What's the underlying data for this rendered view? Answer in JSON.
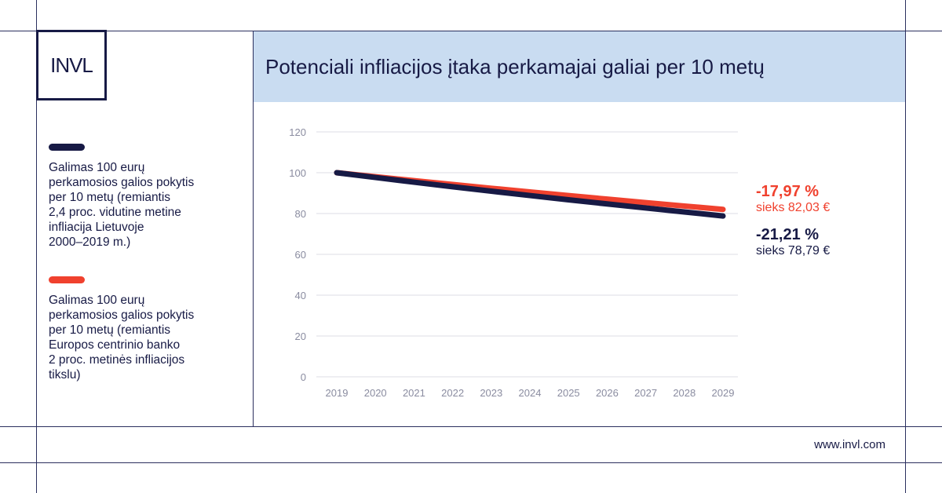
{
  "brand": {
    "logo_text": "INVL",
    "website": "www.invl.com"
  },
  "colors": {
    "navy": "#171a45",
    "red": "#f0412e",
    "title_bg": "#c9dcf1",
    "grid": "#dcdde4",
    "axis_text": "#8a8ca0"
  },
  "chart_data": {
    "type": "line",
    "title": "Potenciali infliacijos įtaka perkamajai galiai per 10 metų",
    "xlabel": "",
    "ylabel": "",
    "x": [
      "2019",
      "2020",
      "2021",
      "2022",
      "2023",
      "2024",
      "2025",
      "2026",
      "2027",
      "2028",
      "2029"
    ],
    "ylim": [
      0,
      120
    ],
    "yticks": [
      "0",
      "20",
      "40",
      "60",
      "80",
      "100",
      "120"
    ],
    "grid": true,
    "legend_position": "left",
    "series": [
      {
        "name": "Galimas 100 eurų perkamosios galios pokytis per 10 metų (remiantis 2,4 proc. vidutine metine infliacija Lietuvoje 2000–2019 m.)",
        "color": "#171a45",
        "values": [
          100.0,
          97.66,
          95.37,
          93.13,
          90.95,
          88.82,
          86.74,
          84.7,
          82.72,
          80.78,
          78.79
        ],
        "end_label_pct": "-21,21 %",
        "end_label_value": "sieks 78,79 €"
      },
      {
        "name": "Galimas 100 eurų perkamosios galios pokytis per 10 metų (remiantis Europos centrinio banko 2 proc. metinės infliacijos tikslu)",
        "color": "#f0412e",
        "values": [
          100.0,
          98.04,
          96.12,
          94.23,
          92.38,
          90.57,
          88.8,
          87.06,
          85.35,
          83.68,
          82.03
        ],
        "end_label_pct": "-17,97 %",
        "end_label_value": "sieks 82,03 €"
      }
    ]
  },
  "legend": [
    "Galimas 100 eurų\nperkamosios galios pokytis\nper 10 metų (remiantis\n2,4 proc. vidutine metine\ninfliacija Lietuvoje\n2000–2019 m.)",
    "Galimas 100 eurų\nperkamosios galios pokytis\nper 10 metų (remiantis\nEuropos centrinio banko\n2 proc. metinės infliacijos\ntikslu)"
  ]
}
